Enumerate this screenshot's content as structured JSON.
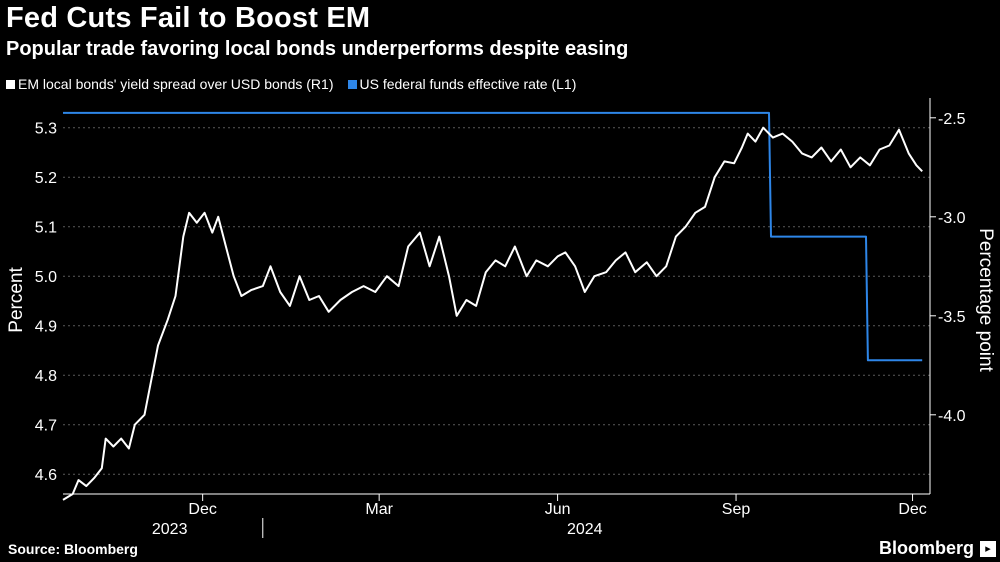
{
  "header": {
    "title": "Fed Cuts Fail to Boost EM",
    "subtitle": "Popular trade favoring local bonds underperforms despite easing"
  },
  "legend": {
    "items": [
      {
        "label": "EM local bonds' yield spread over USD bonds (R1)",
        "color": "#ffffff"
      },
      {
        "label": "US federal funds effective rate (L1)",
        "color": "#2e86e8"
      }
    ]
  },
  "footer": {
    "source": "Source: Bloomberg",
    "brand": "Bloomberg"
  },
  "chart_data": {
    "type": "line",
    "title": "Fed Cuts Fail to Boost EM",
    "subtitle": "Popular trade favoring local bonds underperforms despite easing",
    "left_axis": {
      "label": "Percent",
      "ticks": [
        "5.3",
        "5.2",
        "5.1",
        "5.0",
        "4.9",
        "4.8",
        "4.7",
        "4.6"
      ],
      "range": [
        4.56,
        5.36
      ]
    },
    "right_axis": {
      "label": "Percentage point",
      "ticks": [
        "-2.5",
        "-3.0",
        "-3.5",
        "-4.0"
      ],
      "range": [
        -2.4,
        -4.4
      ]
    },
    "x_axis": {
      "ticks": [
        {
          "label": "Dec",
          "date": "2023-12-01"
        },
        {
          "label": "Mar",
          "date": "2024-03-01"
        },
        {
          "label": "Jun",
          "date": "2024-06-01"
        },
        {
          "label": "Sep",
          "date": "2024-09-01"
        },
        {
          "label": "Dec",
          "date": "2024-12-01"
        }
      ],
      "years": [
        {
          "label": "2023",
          "date": "2023-11-14"
        },
        {
          "label": "2024",
          "date": "2024-06-15"
        }
      ],
      "start": "2023-09-20",
      "end": "2024-12-10"
    },
    "series": [
      {
        "name": "US federal funds effective rate (L1)",
        "axis": "left",
        "color": "#2e86e8",
        "points": [
          [
            "2023-09-20",
            5.33
          ],
          [
            "2024-09-18",
            5.33
          ],
          [
            "2024-09-19",
            5.08
          ],
          [
            "2024-11-07",
            5.08
          ],
          [
            "2024-11-08",
            4.83
          ],
          [
            "2024-12-06",
            4.83
          ]
        ]
      },
      {
        "name": "EM local bonds' yield spread over USD bonds (R1)",
        "axis": "right",
        "color": "#ffffff",
        "points": [
          [
            "2023-09-20",
            -4.43
          ],
          [
            "2023-09-25",
            -4.4
          ],
          [
            "2023-09-28",
            -4.33
          ],
          [
            "2023-10-02",
            -4.36
          ],
          [
            "2023-10-06",
            -4.32
          ],
          [
            "2023-10-10",
            -4.27
          ],
          [
            "2023-10-12",
            -4.12
          ],
          [
            "2023-10-16",
            -4.16
          ],
          [
            "2023-10-20",
            -4.12
          ],
          [
            "2023-10-24",
            -4.17
          ],
          [
            "2023-10-27",
            -4.05
          ],
          [
            "2023-11-01",
            -4.0
          ],
          [
            "2023-11-04",
            -3.85
          ],
          [
            "2023-11-08",
            -3.65
          ],
          [
            "2023-11-13",
            -3.52
          ],
          [
            "2023-11-17",
            -3.4
          ],
          [
            "2023-11-21",
            -3.1
          ],
          [
            "2023-11-24",
            -2.98
          ],
          [
            "2023-11-28",
            -3.03
          ],
          [
            "2023-12-02",
            -2.98
          ],
          [
            "2023-12-06",
            -3.08
          ],
          [
            "2023-12-09",
            -3.0
          ],
          [
            "2023-12-13",
            -3.15
          ],
          [
            "2023-12-17",
            -3.3
          ],
          [
            "2023-12-21",
            -3.4
          ],
          [
            "2023-12-26",
            -3.37
          ],
          [
            "2024-01-01",
            -3.35
          ],
          [
            "2024-01-05",
            -3.25
          ],
          [
            "2024-01-10",
            -3.38
          ],
          [
            "2024-01-15",
            -3.45
          ],
          [
            "2024-01-20",
            -3.3
          ],
          [
            "2024-01-25",
            -3.42
          ],
          [
            "2024-01-30",
            -3.4
          ],
          [
            "2024-02-04",
            -3.48
          ],
          [
            "2024-02-10",
            -3.42
          ],
          [
            "2024-02-16",
            -3.38
          ],
          [
            "2024-02-22",
            -3.35
          ],
          [
            "2024-02-28",
            -3.38
          ],
          [
            "2024-03-05",
            -3.3
          ],
          [
            "2024-03-11",
            -3.35
          ],
          [
            "2024-03-16",
            -3.15
          ],
          [
            "2024-03-22",
            -3.08
          ],
          [
            "2024-03-27",
            -3.25
          ],
          [
            "2024-04-01",
            -3.1
          ],
          [
            "2024-04-06",
            -3.3
          ],
          [
            "2024-04-10",
            -3.5
          ],
          [
            "2024-04-15",
            -3.42
          ],
          [
            "2024-04-20",
            -3.45
          ],
          [
            "2024-04-25",
            -3.28
          ],
          [
            "2024-04-30",
            -3.22
          ],
          [
            "2024-05-05",
            -3.25
          ],
          [
            "2024-05-10",
            -3.15
          ],
          [
            "2024-05-16",
            -3.3
          ],
          [
            "2024-05-21",
            -3.22
          ],
          [
            "2024-05-27",
            -3.25
          ],
          [
            "2024-06-01",
            -3.2
          ],
          [
            "2024-06-05",
            -3.18
          ],
          [
            "2024-06-10",
            -3.25
          ],
          [
            "2024-06-15",
            -3.38
          ],
          [
            "2024-06-20",
            -3.3
          ],
          [
            "2024-06-26",
            -3.28
          ],
          [
            "2024-07-01",
            -3.22
          ],
          [
            "2024-07-06",
            -3.18
          ],
          [
            "2024-07-11",
            -3.28
          ],
          [
            "2024-07-17",
            -3.23
          ],
          [
            "2024-07-22",
            -3.3
          ],
          [
            "2024-07-27",
            -3.25
          ],
          [
            "2024-08-01",
            -3.1
          ],
          [
            "2024-08-06",
            -3.05
          ],
          [
            "2024-08-11",
            -2.98
          ],
          [
            "2024-08-16",
            -2.95
          ],
          [
            "2024-08-21",
            -2.8
          ],
          [
            "2024-08-26",
            -2.72
          ],
          [
            "2024-08-31",
            -2.73
          ],
          [
            "2024-09-04",
            -2.65
          ],
          [
            "2024-09-07",
            -2.58
          ],
          [
            "2024-09-11",
            -2.62
          ],
          [
            "2024-09-15",
            -2.55
          ],
          [
            "2024-09-20",
            -2.6
          ],
          [
            "2024-09-25",
            -2.58
          ],
          [
            "2024-09-30",
            -2.62
          ],
          [
            "2024-10-05",
            -2.68
          ],
          [
            "2024-10-10",
            -2.7
          ],
          [
            "2024-10-15",
            -2.65
          ],
          [
            "2024-10-20",
            -2.72
          ],
          [
            "2024-10-25",
            -2.66
          ],
          [
            "2024-10-30",
            -2.75
          ],
          [
            "2024-11-04",
            -2.7
          ],
          [
            "2024-11-09",
            -2.74
          ],
          [
            "2024-11-14",
            -2.66
          ],
          [
            "2024-11-19",
            -2.64
          ],
          [
            "2024-11-24",
            -2.56
          ],
          [
            "2024-11-29",
            -2.68
          ],
          [
            "2024-12-03",
            -2.74
          ],
          [
            "2024-12-06",
            -2.77
          ]
        ]
      }
    ],
    "grid": "dashed horizontal",
    "legend_position": "top-left"
  }
}
